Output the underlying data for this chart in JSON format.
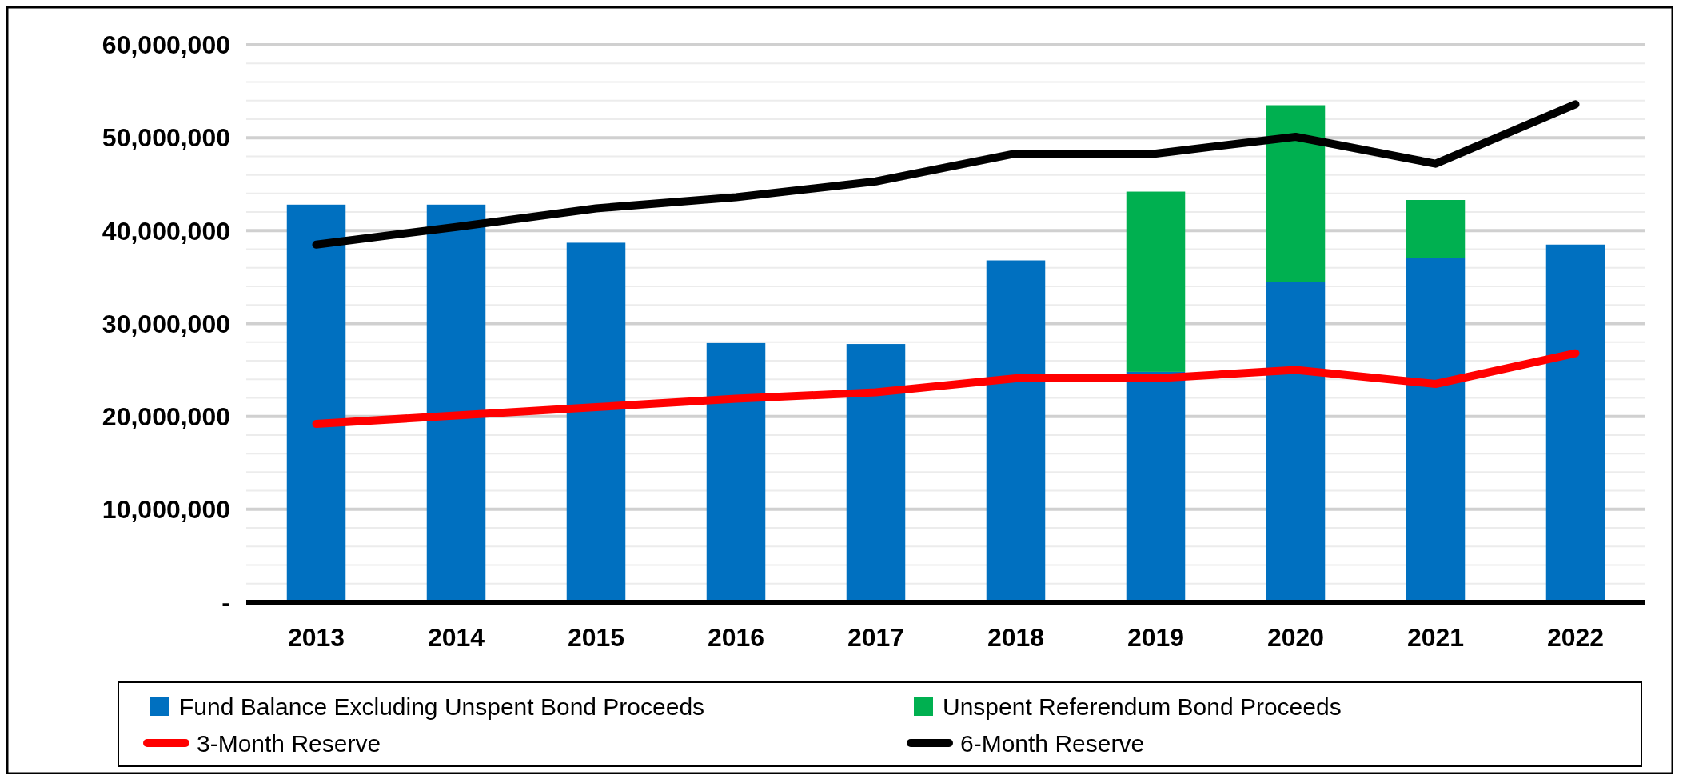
{
  "chart_data": {
    "type": "bar",
    "stacked": true,
    "categories": [
      "2013",
      "2014",
      "2015",
      "2016",
      "2017",
      "2018",
      "2019",
      "2020",
      "2021",
      "2022"
    ],
    "series": [
      {
        "name": "Fund Balance Excluding Unspent Bond Proceeds",
        "color": "#0070c0",
        "values": [
          42800000,
          42800000,
          38700000,
          27900000,
          27800000,
          36800000,
          24800000,
          34500000,
          37100000,
          38500000
        ]
      },
      {
        "name": "Unspent Referendum Bond Proceeds",
        "color": "#00b050",
        "values": [
          null,
          null,
          null,
          null,
          null,
          null,
          19400000,
          19000000,
          6200000,
          null
        ]
      },
      {
        "name": "3-Month Reserve",
        "type": "line",
        "color": "#ff0000",
        "values": [
          19200000,
          20100000,
          21000000,
          21900000,
          22600000,
          24100000,
          24100000,
          25000000,
          23500000,
          26800000
        ]
      },
      {
        "name": "6-Month Reserve",
        "type": "line",
        "color": "#000000",
        "values": [
          38500000,
          40400000,
          42400000,
          43600000,
          45300000,
          48300000,
          48300000,
          50100000,
          47200000,
          53600000
        ]
      }
    ],
    "ylim": [
      0,
      60000000
    ],
    "yticks": [
      {
        "value": 0,
        "label": "-"
      },
      {
        "value": 2000000,
        "label": null
      },
      {
        "value": 4000000,
        "label": null
      },
      {
        "value": 6000000,
        "label": null
      },
      {
        "value": 8000000,
        "label": null
      },
      {
        "value": 10000000,
        "label": "10,000,000"
      },
      {
        "value": 12000000,
        "label": null
      },
      {
        "value": 14000000,
        "label": null
      },
      {
        "value": 16000000,
        "label": null
      },
      {
        "value": 18000000,
        "label": null
      },
      {
        "value": 20000000,
        "label": "20,000,000"
      },
      {
        "value": 22000000,
        "label": null
      },
      {
        "value": 24000000,
        "label": null
      },
      {
        "value": 26000000,
        "label": null
      },
      {
        "value": 28000000,
        "label": null
      },
      {
        "value": 30000000,
        "label": "30,000,000"
      },
      {
        "value": 32000000,
        "label": null
      },
      {
        "value": 34000000,
        "label": null
      },
      {
        "value": 36000000,
        "label": null
      },
      {
        "value": 38000000,
        "label": null
      },
      {
        "value": 40000000,
        "label": "40,000,000"
      },
      {
        "value": 42000000,
        "label": null
      },
      {
        "value": 44000000,
        "label": null
      },
      {
        "value": 46000000,
        "label": null
      },
      {
        "value": 48000000,
        "label": null
      },
      {
        "value": 50000000,
        "label": "50,000,000"
      },
      {
        "value": 52000000,
        "label": null
      },
      {
        "value": 54000000,
        "label": null
      },
      {
        "value": 56000000,
        "label": null
      },
      {
        "value": 58000000,
        "label": null
      },
      {
        "value": 60000000,
        "label": "60,000,000"
      }
    ],
    "grid": "y",
    "legend": "bottom",
    "marker": "none",
    "line_style": "solid"
  }
}
